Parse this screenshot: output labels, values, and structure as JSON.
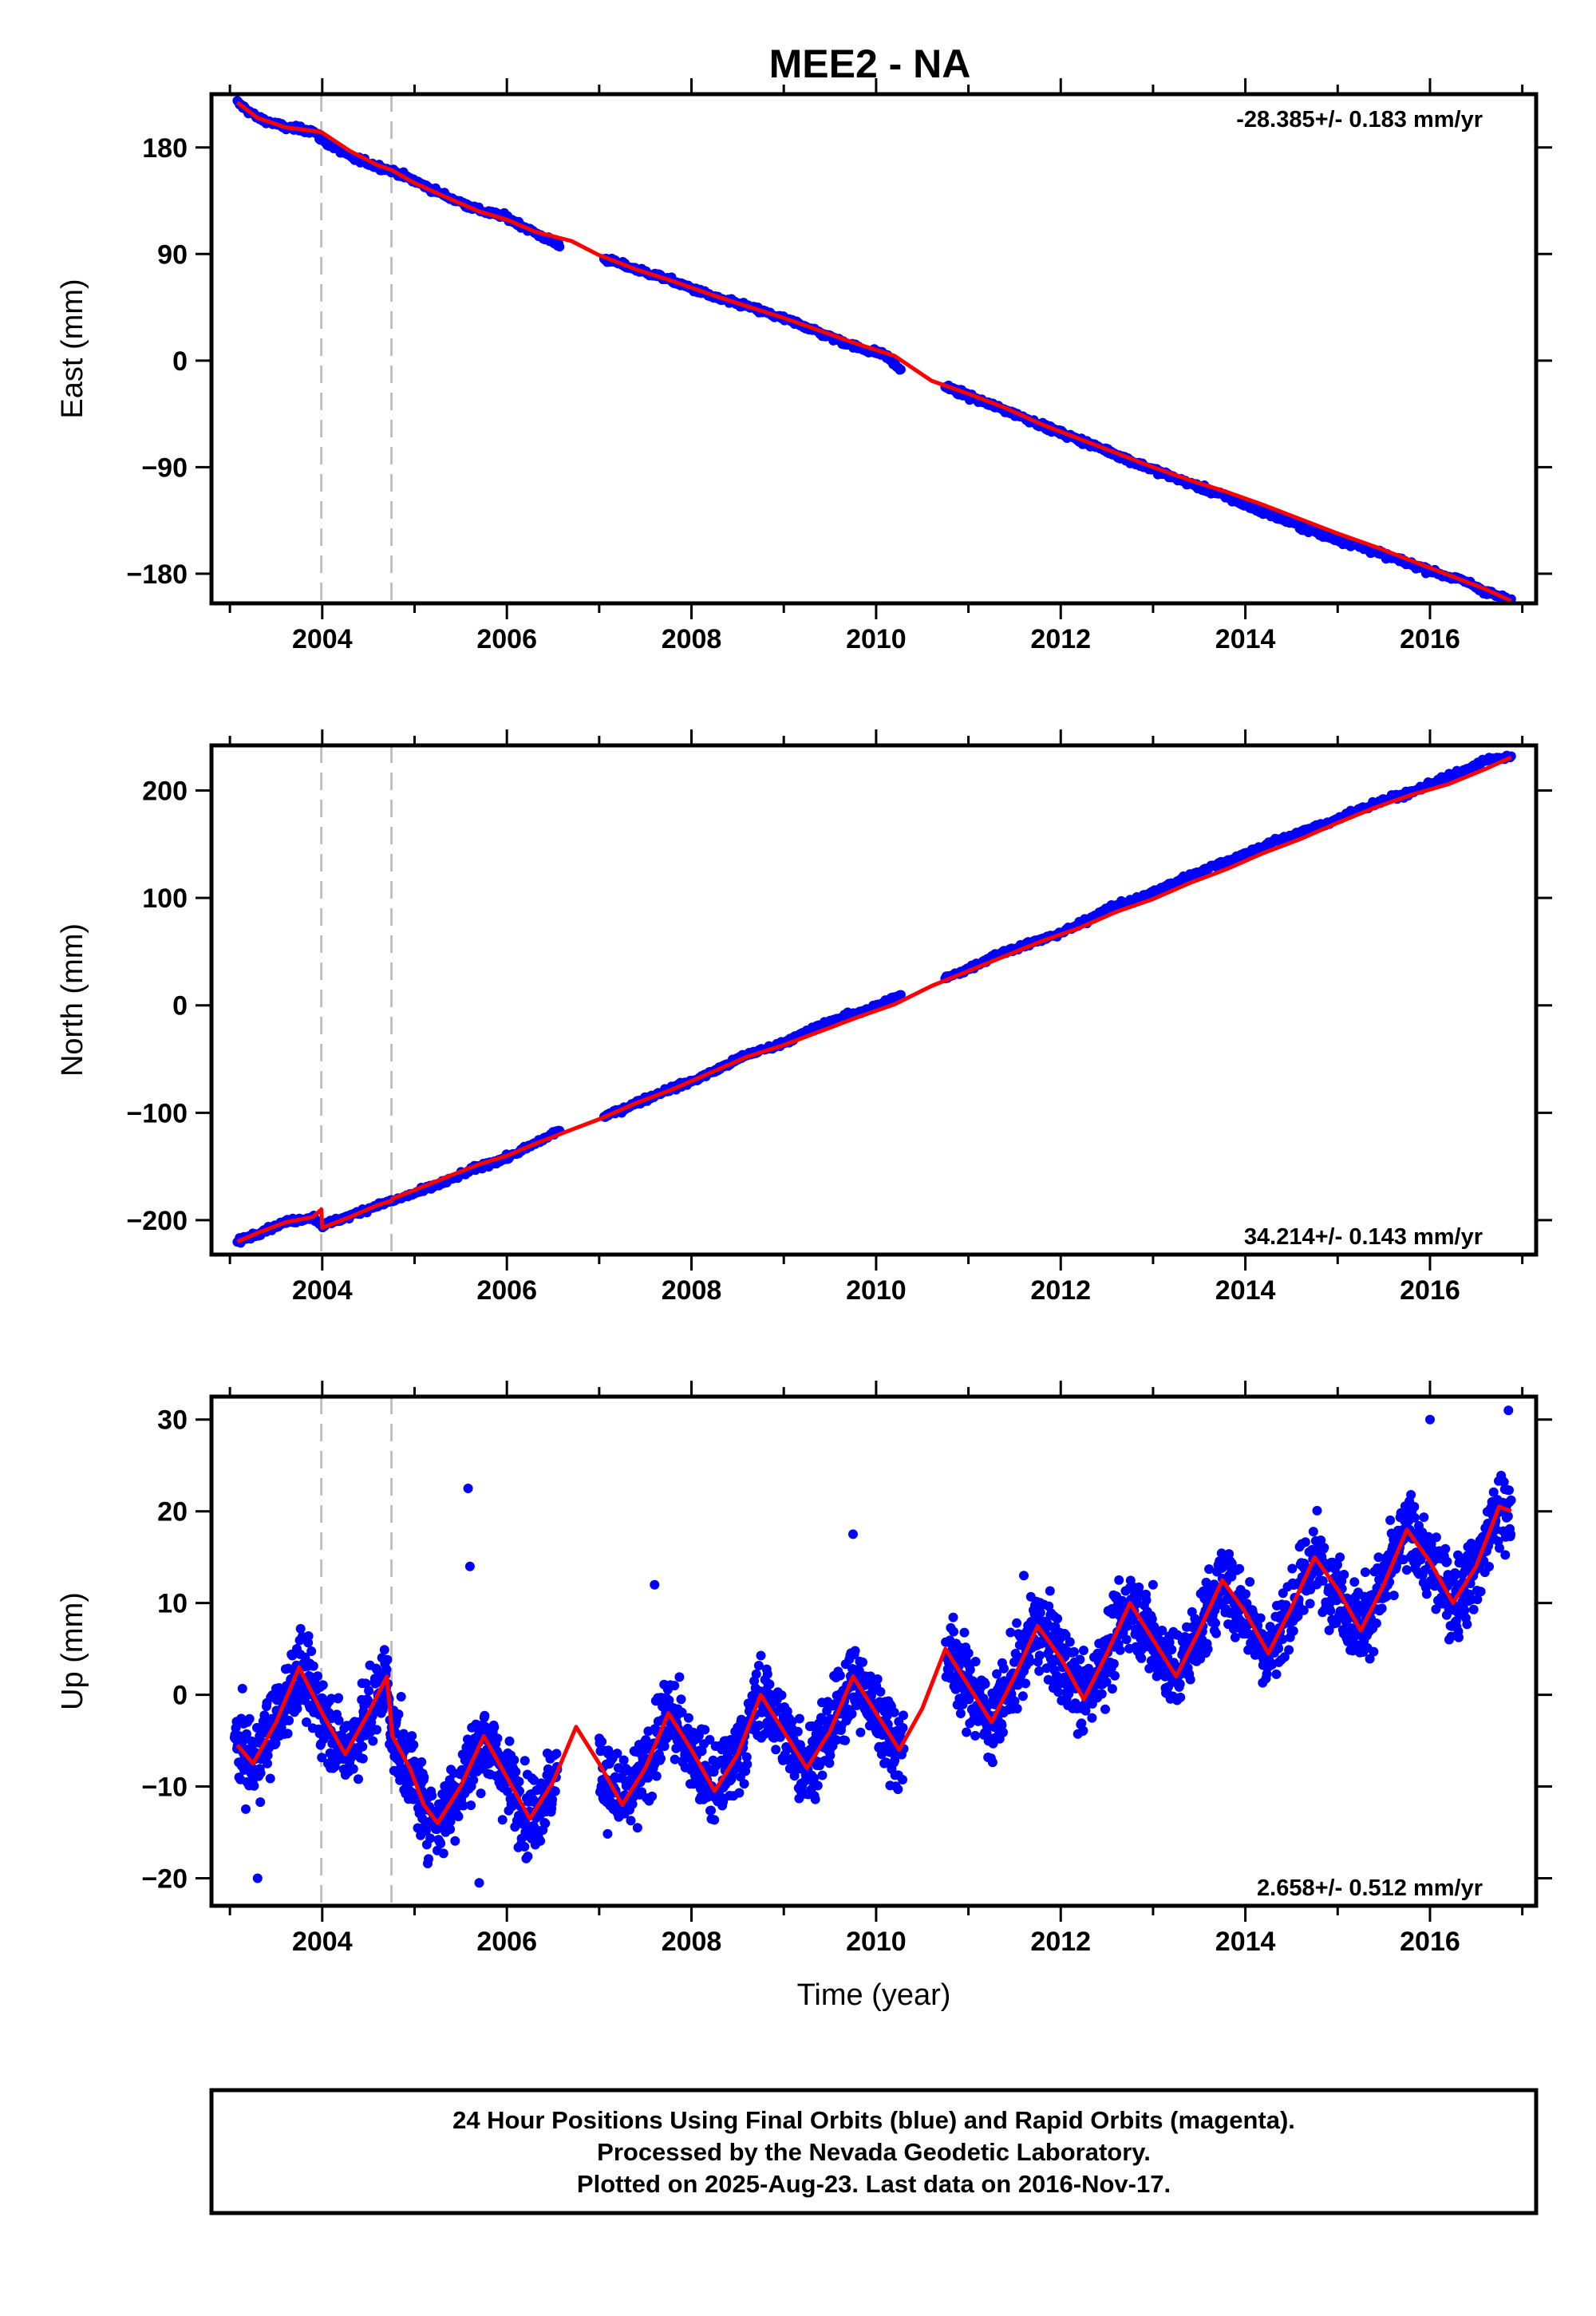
{
  "title": "MEE2 - NA",
  "colors": {
    "final_orbits": "#0000ff",
    "model_fit": "#ff0000",
    "event_lines": "#bfbfbf",
    "frame": "#000000"
  },
  "caption": {
    "line1": "24 Hour Positions Using Final Orbits (blue) and Rapid Orbits (magenta).",
    "line2": "Processed by the Nevada Geodetic Laboratory.",
    "line3": "Plotted on 2025-Aug-23. Last data on 2016-Nov-17."
  },
  "chart_data": [
    {
      "type": "scatter",
      "panel": "east",
      "xlabel": "",
      "ylabel": "East (mm)",
      "xlim": [
        2002.8,
        2017.15
      ],
      "ylim": [
        -205,
        225
      ],
      "xticks": [
        2004,
        2006,
        2008,
        2010,
        2012,
        2014,
        2016
      ],
      "yticks": [
        -180,
        -90,
        0,
        90,
        180
      ],
      "ytick_labels": [
        "−180",
        "−90",
        "0",
        "90",
        "180"
      ],
      "rate_label": "-28.385+/- 0.183 mm/yr",
      "rate_position": "top-right",
      "grid": false,
      "event_lines": [
        2003.99,
        2004.75
      ],
      "series": [
        {
          "role": "daily positions",
          "x": [
            2003.08,
            2003.3,
            2003.6,
            2003.9,
            2004.0,
            2004.3,
            2004.6,
            2004.8,
            2005.1,
            2005.4,
            2005.7,
            2006.0,
            2006.3,
            2006.55,
            2007.1,
            2007.4,
            2007.7,
            2008.0,
            2008.3,
            2008.6,
            2008.9,
            2009.2,
            2009.5,
            2009.8,
            2010.1,
            2010.25,
            2010.75,
            2011.0,
            2011.3,
            2011.6,
            2011.9,
            2012.2,
            2012.5,
            2012.8,
            2013.1,
            2013.4,
            2013.7,
            2014.0,
            2014.3,
            2014.6,
            2014.9,
            2015.2,
            2015.5,
            2015.8,
            2016.1,
            2016.4,
            2016.6,
            2016.88
          ],
          "y": [
            218,
            205,
            197,
            194,
            186,
            172,
            164,
            159,
            148,
            137,
            127,
            121,
            108,
            98,
            85,
            77,
            70,
            61,
            52,
            46,
            38,
            30,
            20,
            11,
            5,
            -7,
            -22,
            -30,
            -39,
            -48,
            -58,
            -67,
            -76,
            -86,
            -95,
            -104,
            -112,
            -122,
            -131,
            -140,
            -149,
            -156,
            -164,
            -172,
            -180,
            -187,
            -195,
            -203
          ]
        },
        {
          "role": "model fit",
          "x": [
            2003.08,
            2003.3,
            2003.6,
            2003.9,
            2003.99,
            2004.3,
            2004.6,
            2004.75,
            2005.0,
            2005.4,
            2005.7,
            2006.0,
            2006.3,
            2006.7,
            2007.0,
            2007.4,
            2007.8,
            2008.2,
            2008.6,
            2009.0,
            2009.4,
            2009.8,
            2010.2,
            2010.6,
            2011.0,
            2011.4,
            2011.8,
            2012.2,
            2012.6,
            2013.0,
            2013.4,
            2013.8,
            2014.2,
            2014.6,
            2015.0,
            2015.4,
            2015.8,
            2016.2,
            2016.6,
            2016.88
          ],
          "y": [
            218,
            205,
            197,
            194,
            193,
            177,
            165,
            161,
            150,
            136,
            126,
            119,
            109,
            101,
            89,
            77,
            67,
            56,
            46,
            36,
            25,
            14,
            4,
            -17,
            -28,
            -40,
            -54,
            -66,
            -78,
            -90,
            -101,
            -111,
            -122,
            -134,
            -146,
            -157,
            -169,
            -181,
            -193,
            -203
          ]
        }
      ]
    },
    {
      "type": "scatter",
      "panel": "north",
      "xlabel": "",
      "ylabel": "North (mm)",
      "xlim": [
        2002.8,
        2017.15
      ],
      "ylim": [
        -232,
        242
      ],
      "xticks": [
        2004,
        2006,
        2008,
        2010,
        2012,
        2014,
        2016
      ],
      "yticks": [
        -200,
        -100,
        0,
        100,
        200
      ],
      "ytick_labels": [
        "−200",
        "−100",
        "0",
        "100",
        "200"
      ],
      "rate_label": "34.214+/- 0.143 mm/yr",
      "rate_position": "bottom-right",
      "grid": false,
      "event_lines": [
        2003.99,
        2004.75
      ],
      "series": [
        {
          "role": "daily positions",
          "x": [
            2003.08,
            2003.3,
            2003.6,
            2003.9,
            2004.0,
            2004.3,
            2004.6,
            2004.8,
            2005.1,
            2005.4,
            2005.7,
            2006.0,
            2006.3,
            2006.55,
            2007.1,
            2007.4,
            2007.7,
            2008.0,
            2008.3,
            2008.6,
            2008.9,
            2009.2,
            2009.5,
            2009.8,
            2010.1,
            2010.25,
            2010.75,
            2011.0,
            2011.3,
            2011.6,
            2011.9,
            2012.2,
            2012.5,
            2012.8,
            2013.1,
            2013.4,
            2013.7,
            2014.0,
            2014.3,
            2014.6,
            2014.9,
            2015.2,
            2015.5,
            2015.8,
            2016.1,
            2016.4,
            2016.6,
            2016.88
          ],
          "y": [
            -220,
            -212,
            -202,
            -197,
            -205,
            -196,
            -186,
            -181,
            -172,
            -162,
            -150,
            -142,
            -129,
            -117,
            -102,
            -91,
            -80,
            -71,
            -59,
            -46,
            -38,
            -27,
            -15,
            -7,
            3,
            9,
            25,
            34,
            47,
            56,
            64,
            75,
            90,
            98,
            109,
            121,
            131,
            141,
            152,
            161,
            170,
            181,
            191,
            198,
            210,
            219,
            228,
            232
          ]
        },
        {
          "role": "model fit",
          "x": [
            2003.08,
            2003.3,
            2003.6,
            2003.9,
            2003.99,
            2004.0,
            2004.3,
            2004.6,
            2004.75,
            2004.76,
            2005.0,
            2005.4,
            2005.7,
            2006.0,
            2006.3,
            2006.6,
            2007.0,
            2007.4,
            2007.8,
            2008.2,
            2008.6,
            2009.0,
            2009.4,
            2009.8,
            2010.2,
            2010.6,
            2011.0,
            2011.4,
            2011.8,
            2012.2,
            2012.6,
            2013.0,
            2013.4,
            2013.8,
            2014.2,
            2014.6,
            2015.0,
            2015.4,
            2015.8,
            2016.2,
            2016.6,
            2016.88
          ],
          "y": [
            -220,
            -212,
            -202,
            -197,
            -190,
            -207,
            -197,
            -186,
            -182,
            -180,
            -172,
            -158,
            -148,
            -140,
            -129,
            -119,
            -106,
            -91,
            -78,
            -63,
            -48,
            -37,
            -24,
            -11,
            1,
            18,
            32,
            46,
            60,
            72,
            87,
            99,
            114,
            127,
            142,
            155,
            170,
            184,
            196,
            206,
            220,
            231
          ]
        }
      ]
    },
    {
      "type": "scatter",
      "panel": "up",
      "xlabel": "Time (year)",
      "ylabel": "Up (mm)",
      "xlim": [
        2002.8,
        2017.15
      ],
      "ylim": [
        -23,
        32.5
      ],
      "xticks": [
        2004,
        2006,
        2008,
        2010,
        2012,
        2014,
        2016
      ],
      "yticks": [
        -20,
        -10,
        0,
        10,
        20,
        30
      ],
      "ytick_labels": [
        "−20",
        "−10",
        "0",
        "10",
        "20",
        "30"
      ],
      "rate_label": "2.658+/- 0.512 mm/yr",
      "rate_position": "bottom-right",
      "grid": false,
      "event_lines": [
        2003.99,
        2004.75
      ],
      "series": [
        {
          "role": "daily positions (scatter around model, spread about 3 mm)",
          "x_range": [
            2003.05,
            2016.88
          ],
          "gaps": [
            [
              2006.55,
              2007.0
            ],
            [
              2010.3,
              2010.75
            ]
          ],
          "noise_mm": 3.0,
          "outliers": {
            "x": [
              2005.58,
              2005.6,
              2009.75,
              2016.85,
              2016.0,
              2003.3,
              2005.7,
              2007.6,
              2011.6,
              2013.0
            ],
            "y": [
              22.5,
              14,
              17.5,
              31,
              30,
              -20,
              -20.5,
              12,
              13,
              12
            ]
          }
        },
        {
          "role": "model fit",
          "x": [
            2003.08,
            2003.25,
            2003.5,
            2003.75,
            2004.0,
            2004.25,
            2004.5,
            2004.7,
            2004.76,
            2004.95,
            2005.1,
            2005.25,
            2005.5,
            2005.75,
            2006.0,
            2006.25,
            2006.5,
            2006.75,
            2007.0,
            2007.25,
            2007.5,
            2007.75,
            2008.0,
            2008.25,
            2008.5,
            2008.75,
            2009.0,
            2009.25,
            2009.5,
            2009.75,
            2010.0,
            2010.25,
            2010.5,
            2010.75,
            2011.0,
            2011.25,
            2011.5,
            2011.75,
            2012.0,
            2012.25,
            2012.5,
            2012.75,
            2013.0,
            2013.25,
            2013.5,
            2013.75,
            2014.0,
            2014.25,
            2014.5,
            2014.75,
            2015.0,
            2015.25,
            2015.5,
            2015.75,
            2016.0,
            2016.25,
            2016.5,
            2016.75,
            2016.88
          ],
          "y": [
            -5.5,
            -7.5,
            -3,
            3,
            -2,
            -6.5,
            -2,
            2,
            -4.5,
            -8,
            -12,
            -14,
            -10,
            -4.5,
            -9,
            -13.5,
            -9.5,
            -3.5,
            -7.5,
            -12,
            -8,
            -2,
            -6,
            -10.5,
            -6.5,
            0,
            -4,
            -8,
            -4,
            2,
            -2,
            -6,
            -1.5,
            5,
            1,
            -3,
            2,
            7.5,
            4,
            -0.5,
            4.5,
            10,
            6,
            2,
            7,
            12.5,
            9,
            4.5,
            9.5,
            15,
            11.5,
            7,
            12,
            18,
            14.5,
            10,
            14,
            20.5,
            20
          ]
        }
      ]
    }
  ]
}
